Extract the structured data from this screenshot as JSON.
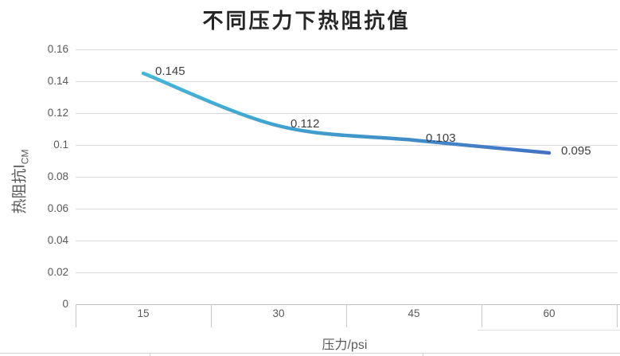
{
  "chart_data": {
    "type": "line",
    "title": "不同压力下热阻抗值",
    "xlabel": "压力/psi",
    "ylabel": "热阻抗I",
    "ylabel_subscript": "CM",
    "categories": [
      "15",
      "30",
      "45",
      "60"
    ],
    "series": [
      {
        "name": "热阻抗值",
        "values": [
          0.145,
          0.112,
          0.103,
          0.095
        ],
        "data_labels": [
          "0.145",
          "0.112",
          "0.103",
          "0.095"
        ]
      }
    ],
    "yticks": [
      0,
      0.02,
      0.04,
      0.06,
      0.08,
      0.1,
      0.12,
      0.14,
      0.16
    ],
    "ytick_labels": [
      "0",
      "0.02",
      "0.04",
      "0.06",
      "0.08",
      "0.1",
      "0.12",
      "0.14",
      "0.16"
    ],
    "ylim": [
      0,
      0.16
    ],
    "grid": "horizontal",
    "legend": "none",
    "line_smooth": true,
    "colors": {
      "line_gradient_start": "#45b6d8",
      "line_gradient_mid": "#3f98ca",
      "line_gradient_end": "#4471c4",
      "gridline": "#d9d9d9",
      "axis_line": "#c0c0c0",
      "tick_label": "#595959",
      "data_label": "#3f3f3f",
      "title": "#262626"
    }
  }
}
